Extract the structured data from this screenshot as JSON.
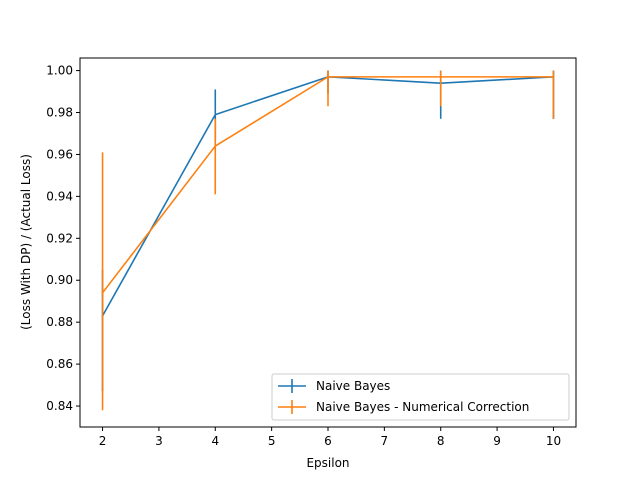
{
  "chart_data": {
    "type": "line",
    "title": "",
    "xlabel": "Epsilon",
    "ylabel": "(Loss With DP) / (Actual Loss)",
    "xlim": [
      1.6,
      10.4
    ],
    "ylim": [
      0.83,
      1.006
    ],
    "xticks": [
      2,
      3,
      4,
      5,
      6,
      7,
      8,
      9,
      10
    ],
    "yticks": [
      0.84,
      0.86,
      0.88,
      0.9,
      0.92,
      0.94,
      0.96,
      0.98,
      1.0
    ],
    "ytick_labels": [
      "0.84",
      "0.86",
      "0.88",
      "0.90",
      "0.92",
      "0.94",
      "0.96",
      "0.98",
      "1.00"
    ],
    "grid": false,
    "legend_position": "lower-right",
    "x": [
      2,
      4,
      6,
      8,
      10
    ],
    "series": [
      {
        "name": "Naive Bayes",
        "color": "#1f77b4",
        "values": [
          0.883,
          0.979,
          0.997,
          0.994,
          0.997
        ],
        "err_low": [
          0.847,
          0.967,
          0.989,
          0.977,
          0.977
        ],
        "err_high": [
          0.905,
          0.991,
          1.0,
          1.0,
          1.0
        ]
      },
      {
        "name": "Naive Bayes - Numerical Correction",
        "color": "#ff7f0e",
        "values": [
          0.894,
          0.964,
          0.997,
          0.997,
          0.997
        ],
        "err_low": [
          0.838,
          0.941,
          0.983,
          0.983,
          0.977
        ],
        "err_high": [
          0.961,
          0.977,
          1.0,
          1.0,
          1.0
        ]
      }
    ]
  }
}
